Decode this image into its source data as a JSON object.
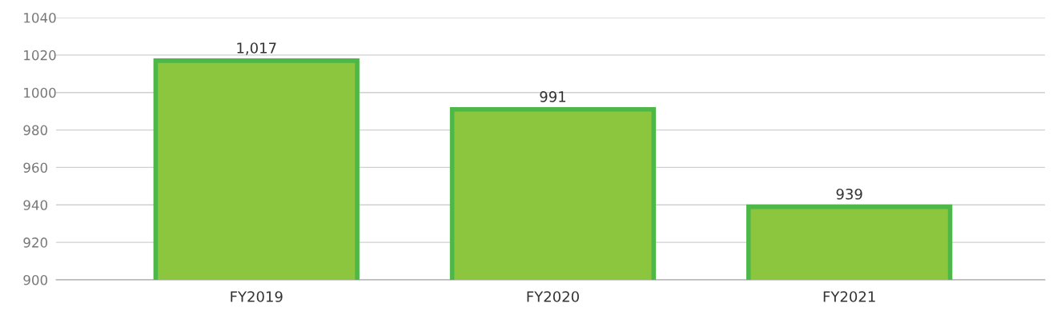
{
  "chart_data": {
    "type": "bar",
    "categories": [
      "FY2019",
      "FY2020",
      "FY2021"
    ],
    "values": [
      1017,
      991,
      939
    ],
    "value_labels": [
      "1,017",
      "991",
      "939"
    ],
    "color": "#8cc63f",
    "ylim": [
      900,
      1040
    ],
    "yticks": [
      900,
      920,
      940,
      960,
      980,
      1000,
      1020,
      1040
    ],
    "grid": "y"
  }
}
